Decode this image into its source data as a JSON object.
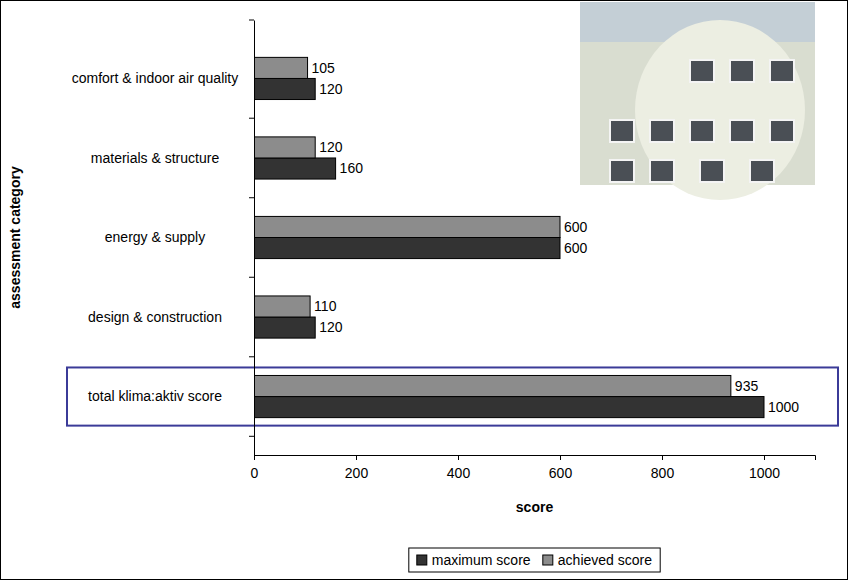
{
  "chart_data": {
    "type": "bar",
    "orientation": "horizontal",
    "x_label": "score",
    "y_label": "assessment category",
    "categories": [
      "comfort & indoor air quality",
      "materials & structure",
      "energy & supply",
      "design & construction",
      "total klima:aktiv score"
    ],
    "series": [
      {
        "name": "maximum score",
        "color": "#333333",
        "values": [
          120,
          160,
          600,
          120,
          1000
        ]
      },
      {
        "name": "achieved score",
        "color": "#8c8c8c",
        "values": [
          105,
          120,
          600,
          110,
          935
        ]
      }
    ],
    "xlim": [
      0,
      1100
    ],
    "xticks": [
      0,
      200,
      400,
      600,
      800,
      1000
    ],
    "data_labels": true,
    "legend": "bottom",
    "grid": false
  }
}
